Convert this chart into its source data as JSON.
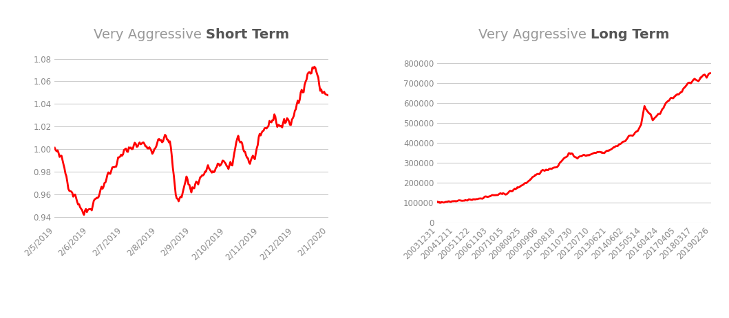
{
  "title1_light": "Very Aggressive ",
  "title1_bold": "Short Term",
  "title2_light": "Very Aggressive ",
  "title2_bold": "Long Term",
  "line_color": "#FF0000",
  "line_width": 2.0,
  "title_color_light": "#999999",
  "title_color_bold": "#555555",
  "title_fontsize": 14,
  "tick_fontsize": 8.5,
  "tick_color": "#888888",
  "grid_color": "#cccccc",
  "background_color": "#ffffff",
  "short_ylim": [
    0.935,
    1.087
  ],
  "short_yticks": [
    0.94,
    0.96,
    0.98,
    1.0,
    1.02,
    1.04,
    1.06,
    1.08
  ],
  "short_xtick_labels": [
    "2/5/2019",
    "2/6/2019",
    "2/7/2019",
    "2/8/2019",
    "2/9/2019",
    "2/10/2019",
    "2/11/2019",
    "2/12/2019",
    "2/1/2020"
  ],
  "long_ylim": [
    0,
    860000
  ],
  "long_yticks": [
    0,
    100000,
    200000,
    300000,
    400000,
    500000,
    600000,
    700000,
    800000
  ],
  "long_xtick_labels": [
    "20031231",
    "20041211",
    "20051122",
    "20061103",
    "20071015",
    "20080925",
    "20090906",
    "20100818",
    "20110730",
    "20120710",
    "20130621",
    "20140602",
    "20150514",
    "20160424",
    "20170405",
    "20180317",
    "20190226"
  ]
}
